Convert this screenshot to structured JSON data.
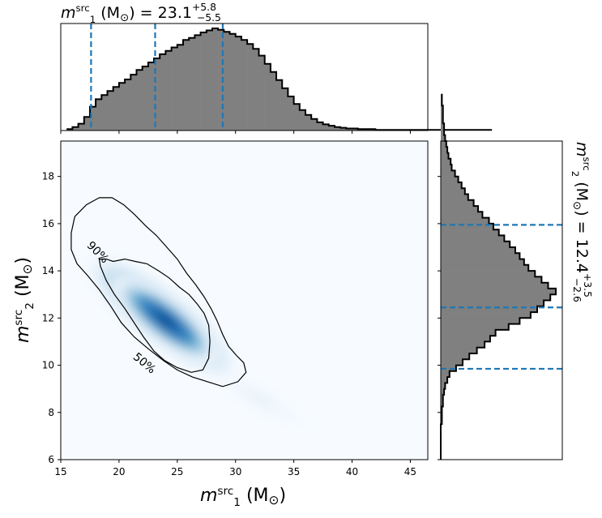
{
  "chart_data": [
    {
      "type": "heatmap",
      "xlabel": {
        "prefix": "m",
        "sub": "1",
        "sup": "src",
        "unit": "(M",
        "unit_sub": "⊙",
        "close": ")"
      },
      "ylabel": {
        "prefix": "m",
        "sub": "2",
        "sup": "src",
        "unit": "(M",
        "unit_sub": "⊙",
        "close": ")"
      },
      "xlim": [
        15,
        46.5
      ],
      "ylim": [
        6,
        19.5
      ],
      "xticks": [
        "15",
        "20",
        "25",
        "30",
        "35",
        "40",
        "45"
      ],
      "xtick_values": [
        15,
        20,
        25,
        30,
        35,
        40,
        45
      ],
      "yticks": [
        "6",
        "8",
        "10",
        "12",
        "14",
        "16",
        "18"
      ],
      "ytick_values": [
        6,
        8,
        10,
        12,
        14,
        16,
        18
      ],
      "colormap": "Blues",
      "density_peak": {
        "x": 24,
        "y": 11.9
      },
      "contours": [
        {
          "label": "90%",
          "label_at": {
            "x": 18.2,
            "y": 14.8
          },
          "points": [
            [
              18.3,
              17.1
            ],
            [
              17.2,
              16.8
            ],
            [
              16.2,
              16.3
            ],
            [
              15.9,
              15.6
            ],
            [
              15.9,
              14.9
            ],
            [
              16.4,
              14.3
            ],
            [
              17.3,
              13.8
            ],
            [
              18.3,
              13.2
            ],
            [
              19.3,
              12.5
            ],
            [
              20.2,
              11.8
            ],
            [
              21.3,
              11.2
            ],
            [
              22.5,
              10.7
            ],
            [
              23.8,
              10.2
            ],
            [
              25.0,
              9.8
            ],
            [
              26.3,
              9.5
            ],
            [
              27.6,
              9.3
            ],
            [
              28.9,
              9.1
            ],
            [
              30.2,
              9.3
            ],
            [
              30.9,
              9.7
            ],
            [
              30.7,
              10.1
            ],
            [
              30.1,
              10.4
            ],
            [
              29.4,
              10.8
            ],
            [
              28.9,
              11.3
            ],
            [
              28.4,
              11.9
            ],
            [
              27.9,
              12.4
            ],
            [
              27.3,
              12.9
            ],
            [
              26.6,
              13.4
            ],
            [
              25.8,
              13.9
            ],
            [
              25.0,
              14.5
            ],
            [
              24.1,
              15.0
            ],
            [
              23.2,
              15.5
            ],
            [
              22.3,
              15.9
            ],
            [
              21.3,
              16.4
            ],
            [
              20.4,
              16.8
            ],
            [
              19.4,
              17.1
            ],
            [
              18.3,
              17.1
            ]
          ]
        },
        {
          "label": "50%",
          "label_at": {
            "x": 22.2,
            "y": 10.1
          },
          "points": [
            [
              18.3,
              14.5
            ],
            [
              18.4,
              14.2
            ],
            [
              18.9,
              13.6
            ],
            [
              19.6,
              13.0
            ],
            [
              20.5,
              12.4
            ],
            [
              21.3,
              11.8
            ],
            [
              22.1,
              11.2
            ],
            [
              23.0,
              10.6
            ],
            [
              23.9,
              10.2
            ],
            [
              25.0,
              9.9
            ],
            [
              26.2,
              9.7
            ],
            [
              27.2,
              9.8
            ],
            [
              27.7,
              10.3
            ],
            [
              27.8,
              11.0
            ],
            [
              27.7,
              11.7
            ],
            [
              27.3,
              12.2
            ],
            [
              26.7,
              12.6
            ],
            [
              26.0,
              13.0
            ],
            [
              25.2,
              13.3
            ],
            [
              24.3,
              13.7
            ],
            [
              23.4,
              14.0
            ],
            [
              22.4,
              14.3
            ],
            [
              21.4,
              14.4
            ],
            [
              20.5,
              14.5
            ],
            [
              19.5,
              14.4
            ],
            [
              18.9,
              14.5
            ],
            [
              18.3,
              14.5
            ]
          ]
        }
      ]
    },
    {
      "type": "bar",
      "title": {
        "prefix": "m",
        "sub": "1",
        "sup": "src",
        "unit": "(M",
        "unit_sub": "⊙",
        "close": ")",
        "eq": "=",
        "value": "23.1",
        "plus": "+5.8",
        "minus": "−5.5"
      },
      "orientation": "vertical",
      "xlim": [
        15,
        46.5
      ],
      "bin_start": 15.5,
      "bin_width": 0.5,
      "values": [
        2,
        5,
        10,
        20,
        35,
        46,
        52,
        58,
        64,
        70,
        75,
        82,
        89,
        94,
        100,
        106,
        112,
        117,
        122,
        126,
        133,
        136,
        140,
        144,
        147,
        150,
        148,
        145,
        142,
        138,
        133,
        127,
        120,
        110,
        98,
        86,
        74,
        62,
        50,
        39,
        30,
        23,
        17,
        12,
        9,
        7,
        5,
        4,
        3,
        3,
        2,
        2,
        2,
        1,
        1,
        1,
        1,
        1,
        1,
        1,
        1,
        1,
        1,
        1,
        1,
        1,
        1,
        1,
        1,
        1,
        1,
        1,
        1
      ],
      "quantile_lines": [
        17.6,
        23.1,
        28.9
      ],
      "fill": "#808080",
      "line_color": "#1f77b4"
    },
    {
      "type": "bar",
      "title": {
        "prefix": "m",
        "sub": "2",
        "sup": "src",
        "unit": "(M",
        "unit_sub": "⊙",
        "close": ")",
        "eq": "=",
        "value": "12.4",
        "plus": "+3.5",
        "minus": "−2.6"
      },
      "orientation": "horizontal",
      "ylim": [
        6,
        19.5
      ],
      "bin_start": 6,
      "bin_width": 0.25,
      "values": [
        0,
        0,
        0,
        0,
        0,
        0,
        1,
        1,
        1,
        2,
        2,
        3,
        4,
        6,
        8,
        14,
        20,
        26,
        33,
        40,
        45,
        50,
        62,
        72,
        82,
        88,
        94,
        100,
        105,
        98,
        92,
        86,
        80,
        76,
        72,
        68,
        63,
        58,
        53,
        48,
        44,
        38,
        34,
        30,
        25,
        22,
        19,
        16,
        13,
        10,
        9,
        7,
        6,
        5,
        4,
        3,
        3,
        2,
        2,
        2,
        1,
        1
      ],
      "quantile_lines": [
        9.85,
        12.45,
        15.95
      ],
      "fill": "#808080",
      "line_color": "#1f77b4"
    }
  ]
}
